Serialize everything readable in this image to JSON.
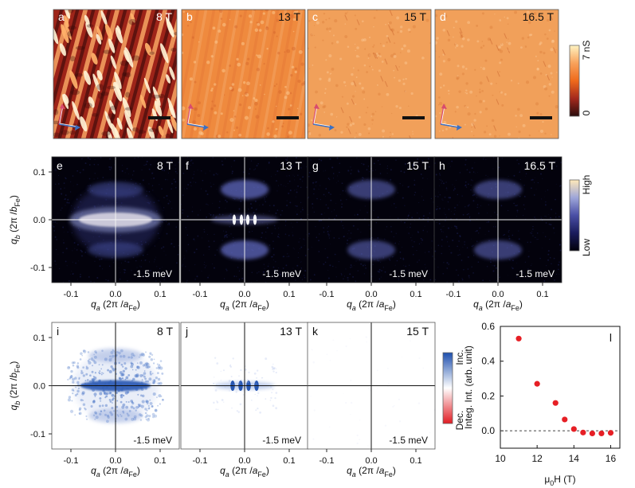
{
  "figure": {
    "rows": {
      "conductance_maps": {
        "panels": [
          {
            "id": "a",
            "field": "8 T",
            "theme": "strong"
          },
          {
            "id": "b",
            "field": "13 T",
            "theme": "medium"
          },
          {
            "id": "c",
            "field": "15 T",
            "theme": "weak"
          },
          {
            "id": "d",
            "field": "16.5 T",
            "theme": "weak"
          }
        ],
        "colorbar": {
          "top_label": "7 nS",
          "bottom_label": "0",
          "colors": [
            "#2b0d0d",
            "#a3291d",
            "#ef6a1b",
            "#f8a25b",
            "#fff3c2"
          ]
        }
      },
      "fourier_maps": {
        "panels": [
          {
            "id": "e",
            "field": "8 T",
            "energy": "-1.5 meV"
          },
          {
            "id": "f",
            "field": "13 T",
            "energy": "-1.5 meV"
          },
          {
            "id": "g",
            "field": "15 T",
            "energy": "-1.5 meV"
          },
          {
            "id": "h",
            "field": "16.5 T",
            "energy": "-1.5 meV"
          }
        ],
        "colorbar": {
          "top_label": "High",
          "bottom_label": "Low",
          "colors": [
            "#02010b",
            "#1a1c5c",
            "#4a4fa5",
            "#9ea6d9",
            "#ffe8b8"
          ]
        },
        "x_axis_label": "q_a (2π /a_Fe)",
        "y_axis_label": "q_b (2π /b_Fe)",
        "tick_labels": [
          "-0.1",
          "0.0",
          "0.1"
        ]
      },
      "difference_maps": {
        "panels": [
          {
            "id": "i",
            "field": "8 T",
            "energy": "-1.5 meV"
          },
          {
            "id": "j",
            "field": "13 T",
            "energy": "-1.5 meV"
          },
          {
            "id": "k",
            "field": "15 T",
            "energy": "-1.5 meV"
          }
        ],
        "colorbar": {
          "top_label": "Inc.",
          "bottom_label": "Dec.",
          "colors": [
            "#1d4fae",
            "#ffffff",
            "#e11c23"
          ]
        },
        "x_axis_label": "q_a (2π /a_Fe)",
        "y_axis_label": "q_b (2π /b_Fe)",
        "tick_labels": [
          "-0.1",
          "0.0",
          "0.1"
        ]
      }
    }
  },
  "chart_data": [
    {
      "type": "scatter",
      "panel_label": "l",
      "xlabel": "μ0H (T)",
      "ylabel": "Integ. Int. (arb. unit)",
      "xlim": [
        10,
        16.5
      ],
      "ylim": [
        -0.1,
        0.6
      ],
      "xticks": [
        10,
        12,
        14,
        16
      ],
      "yticks": [
        0.0,
        0.2,
        0.4,
        0.6
      ],
      "reference_line": 0.0,
      "marker_color": "#e61f25",
      "points": [
        {
          "x": 11.0,
          "y": 0.53
        },
        {
          "x": 12.0,
          "y": 0.27
        },
        {
          "x": 13.0,
          "y": 0.16
        },
        {
          "x": 13.5,
          "y": 0.065
        },
        {
          "x": 14.0,
          "y": 0.01
        },
        {
          "x": 14.5,
          "y": -0.01
        },
        {
          "x": 15.0,
          "y": -0.015
        },
        {
          "x": 15.5,
          "y": -0.015
        },
        {
          "x": 16.0,
          "y": -0.012
        }
      ]
    }
  ]
}
